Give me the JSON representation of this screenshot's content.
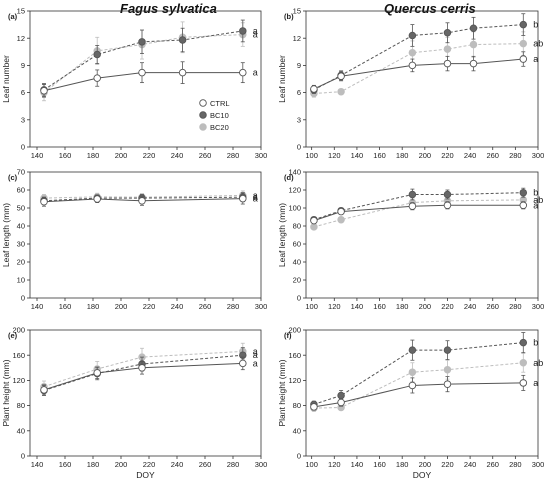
{
  "figure": {
    "species_left": "Fagus sylvatica",
    "species_right": "Quercus cerris",
    "x_axis_title": "DOY"
  },
  "legend": [
    {
      "label": "CTRL",
      "fill": "#ffffff",
      "stroke": "#555555"
    },
    {
      "label": "BC10",
      "fill": "#666666",
      "stroke": "#555555"
    },
    {
      "label": "BC20",
      "fill": "#bdbdbd",
      "stroke": "#bdbdbd"
    }
  ],
  "colors": {
    "CTRL_line": "#555555",
    "BC10_line": "#555555",
    "BC20_line": "#bdbdbd",
    "axis": "#333333",
    "grid": "#e0e0e0"
  },
  "chart_data": [
    {
      "panel": "(a)",
      "type": "line",
      "species": "Fagus sylvatica",
      "ylabel": "Leaf number",
      "xlim": [
        135,
        300
      ],
      "ylim": [
        0,
        15
      ],
      "xticks": [
        140,
        160,
        180,
        200,
        220,
        240,
        260,
        280,
        300
      ],
      "yticks": [
        0,
        3,
        6,
        9,
        12,
        15
      ],
      "series": [
        {
          "name": "CTRL",
          "x": [
            145,
            183,
            215,
            244,
            287
          ],
          "y": [
            6.2,
            7.6,
            8.2,
            8.2,
            8.2
          ],
          "err": [
            0.7,
            0.9,
            1.1,
            1.2,
            1.1
          ],
          "letter": "a"
        },
        {
          "name": "BC10",
          "x": [
            145,
            183,
            215,
            244,
            287
          ],
          "y": [
            6.3,
            10.2,
            11.6,
            11.8,
            12.8
          ],
          "err": [
            0.7,
            1.0,
            1.3,
            1.3,
            1.2
          ],
          "letter": "a"
        },
        {
          "name": "BC20",
          "x": [
            145,
            183,
            215,
            244,
            287
          ],
          "y": [
            6.0,
            10.6,
            11.3,
            12.1,
            12.4
          ],
          "err": [
            0.9,
            1.5,
            1.6,
            1.7,
            1.3
          ],
          "letter": "a"
        }
      ]
    },
    {
      "panel": "(b)",
      "type": "line",
      "species": "Quercus cerris",
      "ylabel": "Leaf number",
      "xlim": [
        95,
        300
      ],
      "ylim": [
        0,
        15
      ],
      "xticks": [
        100,
        120,
        140,
        160,
        180,
        200,
        220,
        240,
        260,
        280,
        300
      ],
      "yticks": [
        0,
        3,
        6,
        9,
        12,
        15
      ],
      "series": [
        {
          "name": "CTRL",
          "x": [
            102,
            126,
            189,
            220,
            243,
            287
          ],
          "y": [
            6.4,
            7.8,
            9.0,
            9.2,
            9.2,
            9.7
          ],
          "err": [
            0.4,
            0.5,
            0.7,
            0.8,
            0.8,
            0.8
          ],
          "letter": "a"
        },
        {
          "name": "BC10",
          "x": [
            102,
            126,
            189,
            220,
            243,
            287
          ],
          "y": [
            6.3,
            7.9,
            12.3,
            12.6,
            13.1,
            13.5
          ],
          "err": [
            0.4,
            0.5,
            1.2,
            1.1,
            1.2,
            1.2
          ],
          "letter": "b"
        },
        {
          "name": "BC20",
          "x": [
            102,
            126,
            189,
            220,
            243,
            287
          ],
          "y": [
            5.9,
            6.1,
            10.4,
            10.8,
            11.3,
            11.4
          ],
          "err": [
            0.4,
            0.3,
            1.3,
            1.3,
            1.4,
            1.3
          ],
          "letter": "ab"
        }
      ]
    },
    {
      "panel": "(c)",
      "type": "line",
      "species": "Fagus sylvatica",
      "ylabel": "Leaf length (mm)",
      "xlim": [
        135,
        300
      ],
      "ylim": [
        0,
        70
      ],
      "xticks": [
        140,
        160,
        180,
        200,
        220,
        240,
        260,
        280,
        300
      ],
      "yticks": [
        0,
        10,
        20,
        30,
        40,
        50,
        60,
        70
      ],
      "series": [
        {
          "name": "CTRL",
          "x": [
            145,
            183,
            215,
            287
          ],
          "y": [
            53.5,
            55.0,
            54.0,
            55.2
          ],
          "err": [
            2.5,
            2.0,
            2.5,
            3.0
          ],
          "letter": "a"
        },
        {
          "name": "BC10",
          "x": [
            145,
            183,
            215,
            287
          ],
          "y": [
            54.0,
            55.5,
            55.5,
            56.0
          ],
          "err": [
            2.0,
            1.8,
            2.0,
            2.5
          ],
          "letter": "a"
        },
        {
          "name": "BC20",
          "x": [
            145,
            183,
            215,
            287
          ],
          "y": [
            55.5,
            56.2,
            56.0,
            57.0
          ],
          "err": [
            2.0,
            2.0,
            2.0,
            2.5
          ],
          "letter": "a"
        }
      ]
    },
    {
      "panel": "(d)",
      "type": "line",
      "species": "Quercus cerris",
      "ylabel": "Leaf length (mm)",
      "xlim": [
        95,
        300
      ],
      "ylim": [
        0,
        140
      ],
      "xticks": [
        100,
        120,
        140,
        160,
        180,
        200,
        220,
        240,
        260,
        280,
        300
      ],
      "yticks": [
        0,
        20,
        40,
        60,
        80,
        100,
        120,
        140
      ],
      "series": [
        {
          "name": "CTRL",
          "x": [
            102,
            126,
            189,
            220,
            287
          ],
          "y": [
            86,
            96,
            102,
            103,
            103
          ],
          "err": [
            3,
            3,
            4,
            4,
            4
          ],
          "letter": "a"
        },
        {
          "name": "BC10",
          "x": [
            102,
            126,
            189,
            220,
            287
          ],
          "y": [
            87,
            97,
            115,
            115,
            117
          ],
          "err": [
            3,
            3,
            6,
            5,
            5
          ],
          "letter": "b"
        },
        {
          "name": "BC20",
          "x": [
            102,
            126,
            189,
            220,
            287
          ],
          "y": [
            79,
            87,
            106,
            108,
            109
          ],
          "err": [
            3,
            3,
            5,
            5,
            5
          ],
          "letter": "ab"
        }
      ]
    },
    {
      "panel": "(e)",
      "type": "line",
      "species": "Fagus sylvatica",
      "ylabel": "Plant height (mm)",
      "xlim": [
        135,
        300
      ],
      "ylim": [
        0,
        200
      ],
      "xticks": [
        140,
        160,
        180,
        200,
        220,
        240,
        260,
        280,
        300
      ],
      "yticks": [
        0,
        40,
        80,
        120,
        160,
        200
      ],
      "series": [
        {
          "name": "CTRL",
          "x": [
            145,
            183,
            215,
            287
          ],
          "y": [
            105,
            132,
            140,
            147
          ],
          "err": [
            8,
            9,
            10,
            10
          ],
          "letter": "a"
        },
        {
          "name": "BC10",
          "x": [
            145,
            183,
            215,
            287
          ],
          "y": [
            104,
            131,
            146,
            160
          ],
          "err": [
            8,
            10,
            11,
            12
          ],
          "letter": "a"
        },
        {
          "name": "BC20",
          "x": [
            145,
            183,
            215,
            287
          ],
          "y": [
            110,
            138,
            157,
            166
          ],
          "err": [
            9,
            12,
            14,
            13
          ],
          "letter": "a"
        }
      ]
    },
    {
      "panel": "(f)",
      "type": "line",
      "species": "Quercus cerris",
      "ylabel": "Plant height (mm)",
      "xlim": [
        95,
        300
      ],
      "ylim": [
        0,
        200
      ],
      "xticks": [
        100,
        120,
        140,
        160,
        180,
        200,
        220,
        240,
        260,
        280,
        300
      ],
      "yticks": [
        0,
        40,
        80,
        120,
        160,
        200
      ],
      "series": [
        {
          "name": "CTRL",
          "x": [
            102,
            126,
            189,
            220,
            287
          ],
          "y": [
            78,
            85,
            112,
            114,
            116
          ],
          "err": [
            5,
            6,
            12,
            12,
            12
          ],
          "letter": "a"
        },
        {
          "name": "BC10",
          "x": [
            102,
            126,
            189,
            220,
            287
          ],
          "y": [
            82,
            96,
            168,
            168,
            180
          ],
          "err": [
            5,
            8,
            16,
            15,
            16
          ],
          "letter": "b"
        },
        {
          "name": "BC20",
          "x": [
            102,
            126,
            189,
            220,
            287
          ],
          "y": [
            76,
            77,
            133,
            137,
            148
          ],
          "err": [
            5,
            4,
            15,
            15,
            15
          ],
          "letter": "ab"
        }
      ]
    }
  ]
}
